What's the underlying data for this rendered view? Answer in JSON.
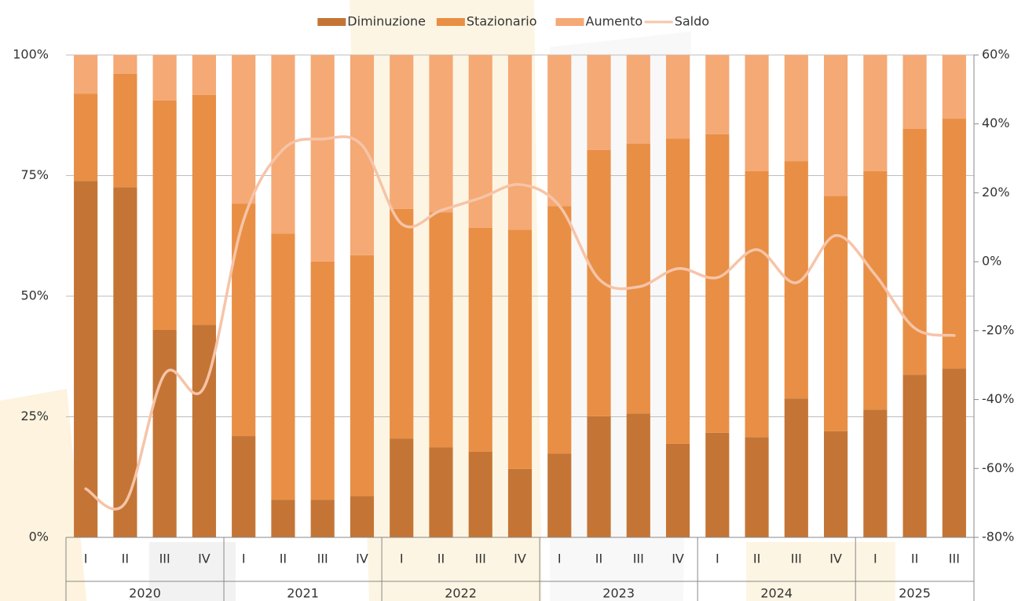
{
  "chart_data": {
    "type": "stacked_bar_line",
    "categories": [
      "I",
      "II",
      "III",
      "IV",
      "I",
      "II",
      "III",
      "IV",
      "I",
      "II",
      "III",
      "IV",
      "I",
      "II",
      "III",
      "IV",
      "I",
      "II",
      "III",
      "IV",
      "I",
      "II",
      "III"
    ],
    "category_years": [
      "2020",
      "2020",
      "2020",
      "2020",
      "2021",
      "2021",
      "2021",
      "2021",
      "2022",
      "2022",
      "2022",
      "2022",
      "2023",
      "2023",
      "2023",
      "2023",
      "2024",
      "2024",
      "2024",
      "2024",
      "2025",
      "2025",
      "2025"
    ],
    "series": [
      {
        "name": "Diminuzione",
        "color": "#c47535",
        "values": [
          73.9,
          72.6,
          43,
          44.1,
          21,
          7.8,
          7.8,
          8.6,
          20.5,
          18.7,
          17.8,
          14.2,
          17.4,
          25.1,
          25.7,
          19.4,
          21.7,
          20.8,
          28.8,
          22,
          26.5,
          33.7,
          35
        ]
      },
      {
        "name": "Stazionario",
        "color": "#e88f45",
        "values": [
          18.1,
          23.5,
          47.6,
          47.6,
          48.2,
          55.2,
          49.4,
          49.9,
          47.6,
          48.7,
          46.4,
          49.6,
          51.3,
          55.2,
          55.9,
          63.3,
          61.9,
          55.1,
          49.2,
          48.8,
          49.4,
          51,
          51.8
        ]
      },
      {
        "name": "Aumento",
        "color": "#f5a975",
        "values": [
          8,
          3.9,
          9.4,
          8.3,
          30.8,
          37,
          42.8,
          41.5,
          31.9,
          32.6,
          35.8,
          36.2,
          31.3,
          19.7,
          18.4,
          17.3,
          16.4,
          24.1,
          22,
          29.2,
          24.1,
          15.3,
          13.2
        ]
      },
      {
        "name": "Saldo",
        "color": "#f6c4a8",
        "type": "line",
        "axis": "y2",
        "values": [
          -65.9,
          -70,
          -32.6,
          -36.4,
          12.1,
          32.6,
          35.6,
          33.8,
          11,
          14.9,
          18.5,
          22.4,
          16.2,
          -5,
          -7.3,
          -2,
          -4.6,
          3.5,
          -6.1,
          7.6,
          -3.8,
          -19.3,
          -21.4
        ]
      }
    ],
    "ylim": [
      0,
      100
    ],
    "yticks": [
      {
        "value": 0,
        "label": "0%"
      },
      {
        "value": 25,
        "label": "25%"
      },
      {
        "value": 50,
        "label": "50%"
      },
      {
        "value": 75,
        "label": "75%"
      },
      {
        "value": 100,
        "label": "100%"
      }
    ],
    "y2lim": [
      -80,
      60
    ],
    "y2ticks": [
      {
        "value": -80,
        "label": "-80%"
      },
      {
        "value": -60,
        "label": "-60%"
      },
      {
        "value": -40,
        "label": "-40%"
      },
      {
        "value": -20,
        "label": "-20%"
      },
      {
        "value": 0,
        "label": "0%"
      },
      {
        "value": 20,
        "label": "20%"
      },
      {
        "value": 40,
        "label": "40%"
      },
      {
        "value": 60,
        "label": "60%"
      }
    ],
    "grid": true,
    "legend": "top"
  }
}
